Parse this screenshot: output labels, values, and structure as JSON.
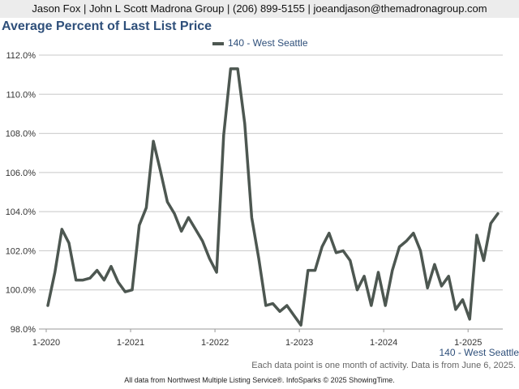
{
  "header": {
    "contact": "Jason Fox | John L Scott Madrona Group | (206) 899-5155 | joeandjason@themadronagroup.com"
  },
  "chart_data": {
    "type": "line",
    "title": "Average Percent of Last List Price",
    "xlabel": "",
    "ylabel": "",
    "ylim": [
      98,
      112
    ],
    "yticks": [
      "98.0%",
      "100.0%",
      "102.0%",
      "104.0%",
      "106.0%",
      "108.0%",
      "110.0%",
      "112.0%"
    ],
    "xticks": [
      "1-2020",
      "1-2021",
      "1-2022",
      "1-2023",
      "1-2024",
      "1-2025"
    ],
    "grid": true,
    "legend_position": "top",
    "series": [
      {
        "name": "140 - West Seattle",
        "color": "#4d5751",
        "x_start": "2020-01",
        "values": [
          99.2,
          100.9,
          103.1,
          102.4,
          100.5,
          100.5,
          100.6,
          101.0,
          100.5,
          101.2,
          100.4,
          99.9,
          100.0,
          103.3,
          104.2,
          107.6,
          106.1,
          104.5,
          103.9,
          103.0,
          103.7,
          103.1,
          102.5,
          101.6,
          100.9,
          107.9,
          111.3,
          111.3,
          108.5,
          103.7,
          101.6,
          99.2,
          99.3,
          98.9,
          99.2,
          98.7,
          98.2,
          101.0,
          101.0,
          102.2,
          102.9,
          101.9,
          102.0,
          101.5,
          100.0,
          100.7,
          99.2,
          100.9,
          99.2,
          101.0,
          102.2,
          102.5,
          102.9,
          102.0,
          100.1,
          101.3,
          100.2,
          100.7,
          99.0,
          99.5,
          98.5,
          102.8,
          101.5,
          103.4,
          103.9
        ]
      }
    ]
  },
  "notes": {
    "series_tag": "140 - West Seattle",
    "activity": "Each data point is one month of activity. Data is from June 6, 2025.",
    "source": "All data from Northwest Multiple Listing Service®. InfoSparks © 2025 ShowingTime."
  }
}
